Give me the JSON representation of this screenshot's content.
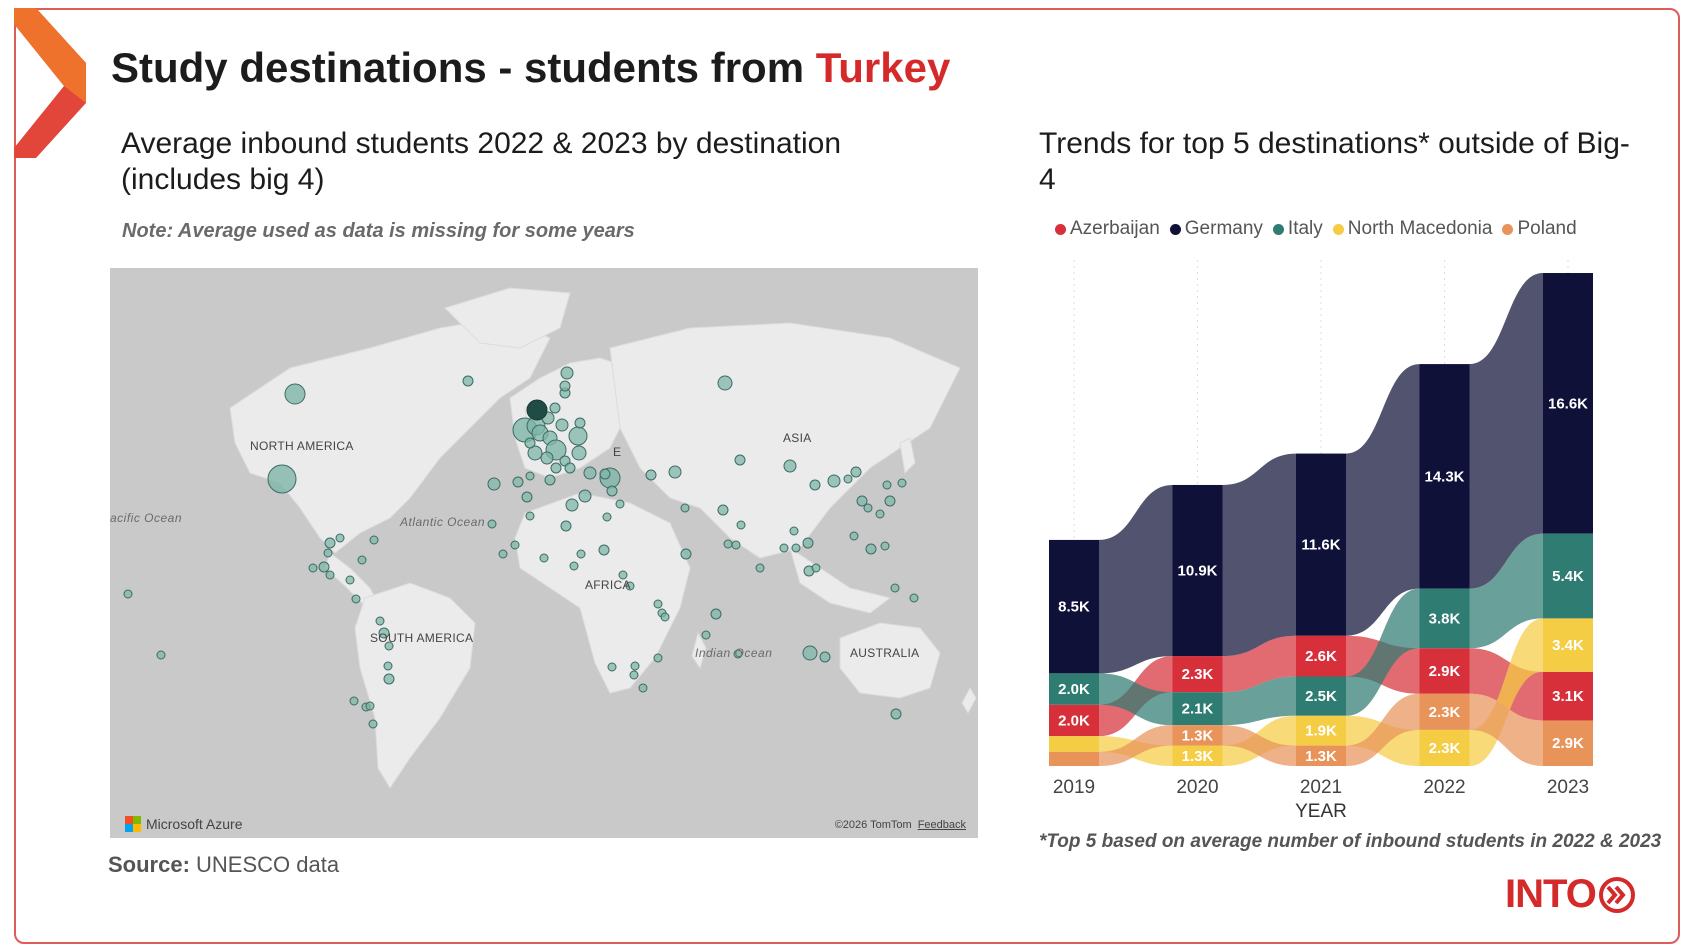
{
  "header": {
    "title_prefix": "Study destinations - students from ",
    "title_highlight": "Turkey"
  },
  "left_panel": {
    "subtitle": "Average inbound students 2022 & 2023 by destination (includes big 4)",
    "note": "Note: Average used as data is missing for some years",
    "map_labels": {
      "north_america": "NORTH AMERICA",
      "south_america": "SOUTH AMERICA",
      "africa": "AFRICA",
      "asia": "ASIA",
      "australia": "AUSTRALIA",
      "europe_partial": "E",
      "atlantic": "Atlantic Ocean",
      "pacific": "acific Ocean",
      "indian": "Indian Ocean"
    },
    "map_branding": "Microsoft Azure",
    "map_credit": "©2026 TomTom",
    "feedback_link": "Feedback",
    "source_label": "Source:",
    "source_value": " UNESCO data"
  },
  "right_panel": {
    "subtitle": "Trends for top 5 destinations* outside of Big-4",
    "footnote": "*Top 5 based on average number of inbound students in 2022 & 2023"
  },
  "brand": {
    "logo_text": "INTO"
  },
  "colors": {
    "accent": "#d42a2a",
    "Azerbaijan": "#d7303a",
    "Germany": "#0f1138",
    "Italy": "#2f7c72",
    "North Macedonia": "#f5cd44",
    "Poland": "#e8935a"
  },
  "chart_data": {
    "type": "ribbon",
    "xlabel": "YEAR",
    "categories": [
      "2019",
      "2020",
      "2021",
      "2022",
      "2023"
    ],
    "series": [
      {
        "name": "Azerbaijan",
        "values": [
          2000,
          2300,
          2600,
          2900,
          3100
        ],
        "labels": [
          "2.0K",
          "2.3K",
          "2.6K",
          "2.9K",
          "3.1K"
        ]
      },
      {
        "name": "Germany",
        "values": [
          8500,
          10900,
          11600,
          14300,
          16600
        ],
        "labels": [
          "8.5K",
          "10.9K",
          "11.6K",
          "14.3K",
          "16.6K"
        ]
      },
      {
        "name": "Italy",
        "values": [
          2000,
          2100,
          2500,
          3800,
          5400
        ],
        "labels": [
          "2.0K",
          "2.1K",
          "2.5K",
          "3.8K",
          "5.4K"
        ]
      },
      {
        "name": "North Macedonia",
        "values": [
          1000,
          1300,
          1900,
          2300,
          3400
        ],
        "labels": [
          "",
          "1.3K",
          "1.9K",
          "2.3K",
          "3.4K"
        ]
      },
      {
        "name": "Poland",
        "values": [
          900,
          1300,
          1300,
          2300,
          2900
        ],
        "labels": [
          "",
          "1.3K",
          "1.3K",
          "2.3K",
          "2.9K"
        ]
      }
    ],
    "legend_position": "top",
    "grid": false
  }
}
